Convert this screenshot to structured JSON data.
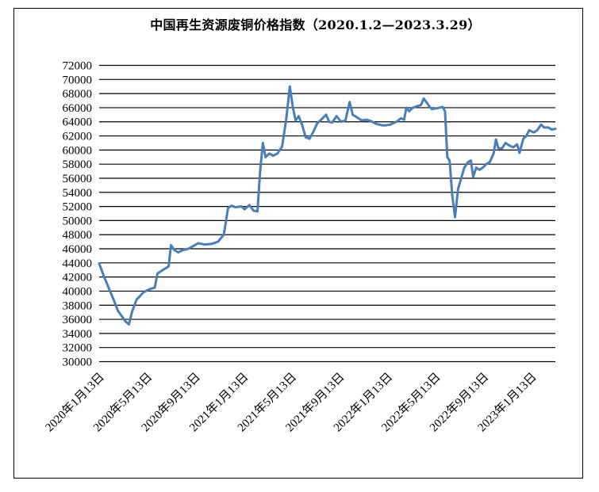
{
  "chart_data": {
    "type": "line",
    "title": "中国再生资源废铜价格指数（2020.1.2—2023.3.29）",
    "xlabel": "",
    "ylabel": "",
    "ylim": [
      30000,
      72000
    ],
    "y_ticks": [
      30000,
      32000,
      34000,
      36000,
      38000,
      40000,
      42000,
      44000,
      46000,
      48000,
      50000,
      52000,
      54000,
      56000,
      58000,
      60000,
      62000,
      64000,
      66000,
      68000,
      70000,
      72000
    ],
    "x_tick_labels": [
      "2020年1月13日",
      "2020年5月13日",
      "2020年9月13日",
      "2021年1月13日",
      "2021年5月13日",
      "2021年9月13日",
      "2022年1月13日",
      "2022年5月13日",
      "2022年9月13日",
      "2023年1月13日"
    ],
    "x_range": [
      "2020-01-02",
      "2023-03-29"
    ],
    "grid": true,
    "legend": "none",
    "line_color": "#4a7ebb",
    "series": [
      {
        "points": [
          [
            "2020-01-02",
            43900
          ],
          [
            "2020-01-15",
            42000
          ],
          [
            "2020-02-03",
            39500
          ],
          [
            "2020-02-20",
            37200
          ],
          [
            "2020-03-10",
            35700
          ],
          [
            "2020-03-19",
            35300
          ],
          [
            "2020-03-28",
            37200
          ],
          [
            "2020-04-08",
            38800
          ],
          [
            "2020-04-15",
            39200
          ],
          [
            "2020-04-25",
            39800
          ],
          [
            "2020-05-05",
            40100
          ],
          [
            "2020-05-13",
            40300
          ],
          [
            "2020-05-25",
            40500
          ],
          [
            "2020-06-01",
            42500
          ],
          [
            "2020-06-15",
            43000
          ],
          [
            "2020-06-30",
            43500
          ],
          [
            "2020-07-06",
            46500
          ],
          [
            "2020-07-15",
            45800
          ],
          [
            "2020-07-25",
            45500
          ],
          [
            "2020-08-05",
            45800
          ],
          [
            "2020-08-20",
            46000
          ],
          [
            "2020-09-05",
            46500
          ],
          [
            "2020-09-15",
            46800
          ],
          [
            "2020-10-01",
            46600
          ],
          [
            "2020-10-20",
            46700
          ],
          [
            "2020-11-05",
            47000
          ],
          [
            "2020-11-20",
            48000
          ],
          [
            "2020-12-01",
            51800
          ],
          [
            "2020-12-10",
            52100
          ],
          [
            "2020-12-20",
            51900
          ],
          [
            "2021-01-05",
            52000
          ],
          [
            "2021-01-13",
            51600
          ],
          [
            "2021-01-25",
            52200
          ],
          [
            "2021-02-05",
            51400
          ],
          [
            "2021-02-15",
            51300
          ],
          [
            "2021-02-22",
            57000
          ],
          [
            "2021-03-01",
            61000
          ],
          [
            "2021-03-08",
            59000
          ],
          [
            "2021-03-18",
            59500
          ],
          [
            "2021-03-28",
            59200
          ],
          [
            "2021-04-08",
            59500
          ],
          [
            "2021-04-20",
            60500
          ],
          [
            "2021-05-01",
            64500
          ],
          [
            "2021-05-10",
            69000
          ],
          [
            "2021-05-18",
            66000
          ],
          [
            "2021-05-25",
            64200
          ],
          [
            "2021-06-02",
            64800
          ],
          [
            "2021-06-10",
            63700
          ],
          [
            "2021-06-20",
            61800
          ],
          [
            "2021-06-30",
            61600
          ],
          [
            "2021-07-10",
            62600
          ],
          [
            "2021-07-20",
            63800
          ],
          [
            "2021-08-01",
            64400
          ],
          [
            "2021-08-12",
            65000
          ],
          [
            "2021-08-20",
            64000
          ],
          [
            "2021-08-28",
            63900
          ],
          [
            "2021-09-08",
            64800
          ],
          [
            "2021-09-20",
            64000
          ],
          [
            "2021-10-01",
            64200
          ],
          [
            "2021-10-12",
            66800
          ],
          [
            "2021-10-20",
            65000
          ],
          [
            "2021-11-01",
            64600
          ],
          [
            "2021-11-12",
            64200
          ],
          [
            "2021-11-25",
            64300
          ],
          [
            "2021-12-06",
            64100
          ],
          [
            "2021-12-20",
            63700
          ],
          [
            "2022-01-05",
            63500
          ],
          [
            "2022-01-13",
            63500
          ],
          [
            "2022-01-25",
            63600
          ],
          [
            "2022-02-10",
            64000
          ],
          [
            "2022-02-22",
            64500
          ],
          [
            "2022-03-02",
            64300
          ],
          [
            "2022-03-08",
            66000
          ],
          [
            "2022-03-15",
            65500
          ],
          [
            "2022-03-25",
            66000
          ],
          [
            "2022-04-05",
            66200
          ],
          [
            "2022-04-15",
            66400
          ],
          [
            "2022-04-22",
            67300
          ],
          [
            "2022-04-30",
            66700
          ],
          [
            "2022-05-06",
            66200
          ],
          [
            "2022-05-13",
            65800
          ],
          [
            "2022-05-25",
            65900
          ],
          [
            "2022-06-02",
            66000
          ],
          [
            "2022-06-10",
            66100
          ],
          [
            "2022-06-16",
            65500
          ],
          [
            "2022-06-22",
            59000
          ],
          [
            "2022-06-28",
            58500
          ],
          [
            "2022-07-05",
            53500
          ],
          [
            "2022-07-12",
            50500
          ],
          [
            "2022-07-20",
            54500
          ],
          [
            "2022-07-28",
            56000
          ],
          [
            "2022-08-05",
            57500
          ],
          [
            "2022-08-15",
            58300
          ],
          [
            "2022-08-22",
            58500
          ],
          [
            "2022-08-28",
            56200
          ],
          [
            "2022-09-05",
            57500
          ],
          [
            "2022-09-13",
            57200
          ],
          [
            "2022-09-22",
            57500
          ],
          [
            "2022-10-01",
            58000
          ],
          [
            "2022-10-10",
            58300
          ],
          [
            "2022-10-20",
            59500
          ],
          [
            "2022-10-26",
            61500
          ],
          [
            "2022-11-01",
            60300
          ],
          [
            "2022-11-10",
            60200
          ],
          [
            "2022-11-20",
            61000
          ],
          [
            "2022-12-01",
            60600
          ],
          [
            "2022-12-10",
            60400
          ],
          [
            "2022-12-20",
            60800
          ],
          [
            "2022-12-26",
            59600
          ],
          [
            "2023-01-05",
            61600
          ],
          [
            "2023-01-13",
            62000
          ],
          [
            "2023-01-20",
            62800
          ],
          [
            "2023-02-01",
            62500
          ],
          [
            "2023-02-10",
            62800
          ],
          [
            "2023-02-20",
            63600
          ],
          [
            "2023-02-28",
            63200
          ],
          [
            "2023-03-10",
            63200
          ],
          [
            "2023-03-20",
            62900
          ],
          [
            "2023-03-29",
            63000
          ]
        ]
      }
    ]
  }
}
